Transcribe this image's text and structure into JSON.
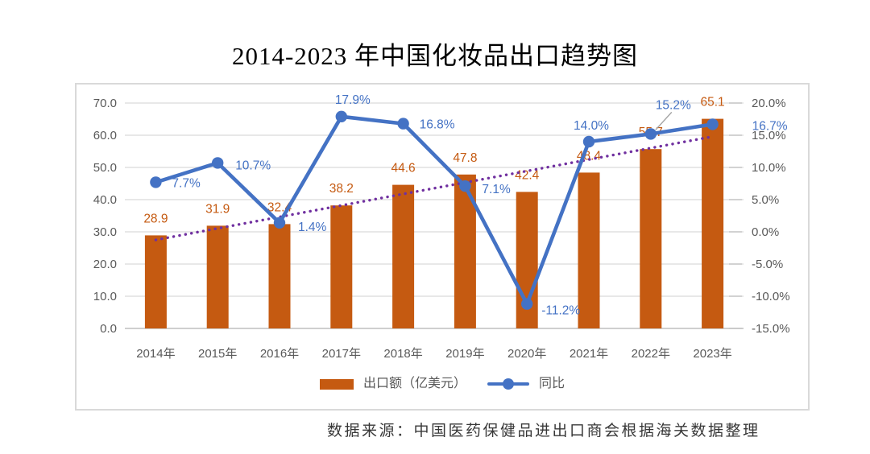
{
  "page": {
    "title": "2014-2023 年中国化妆品出口趋势图",
    "source_note": "数据来源：中国医药保健品进出口商会根据海关数据整理"
  },
  "legend": {
    "bar_label": "出口额（亿美元）",
    "line_label": "同比"
  },
  "colors": {
    "bar": "#C55A11",
    "bar_label": "#C55A11",
    "line": "#4472C4",
    "line_label": "#4472C4",
    "trendline": "#7030A0",
    "grid": "#D9D9D9",
    "axis_line": "#BFBFBF",
    "axis_text": "#595959",
    "leader": "#A6A6A6"
  },
  "chart_data": {
    "type": "bar+line",
    "title": "2014-2023 年中国化妆品出口趋势图",
    "categories": [
      "2014年",
      "2015年",
      "2016年",
      "2017年",
      "2018年",
      "2019年",
      "2020年",
      "2021年",
      "2022年",
      "2023年"
    ],
    "series": [
      {
        "name": "出口额（亿美元）",
        "type": "bar",
        "axis": "left",
        "values": [
          28.9,
          31.9,
          32.4,
          38.2,
          44.6,
          47.8,
          42.4,
          48.4,
          55.7,
          65.1
        ],
        "data_labels": [
          "28.9",
          "31.9",
          "32.4",
          "38.2",
          "44.6",
          "47.8",
          "42.4",
          "48.4",
          "55.7",
          "65.1"
        ]
      },
      {
        "name": "同比",
        "type": "line",
        "axis": "right",
        "values": [
          7.7,
          10.7,
          1.4,
          17.9,
          16.8,
          7.1,
          -11.2,
          14.0,
          15.2,
          16.7
        ],
        "data_labels": [
          "7.7%",
          "10.7%",
          "1.4%",
          "17.9%",
          "16.8%",
          "7.1%",
          "-11.2%",
          "14.0%",
          "15.2%",
          "16.7%"
        ]
      }
    ],
    "trendline": {
      "series": "出口额（亿美元）",
      "type": "linear",
      "style": "dotted"
    },
    "left_axis": {
      "min": 0,
      "max": 70,
      "step": 10,
      "tick_labels": [
        "0.0",
        "10.0",
        "20.0",
        "30.0",
        "40.0",
        "50.0",
        "60.0",
        "70.0"
      ]
    },
    "right_axis": {
      "min": -15,
      "max": 20,
      "step": 5,
      "tick_labels": [
        "-15.0%",
        "-10.0%",
        "-5.0%",
        "0.0%",
        "5.0%",
        "10.0%",
        "15.0%",
        "20.0%"
      ]
    },
    "grid": true,
    "legend_position": "bottom"
  }
}
